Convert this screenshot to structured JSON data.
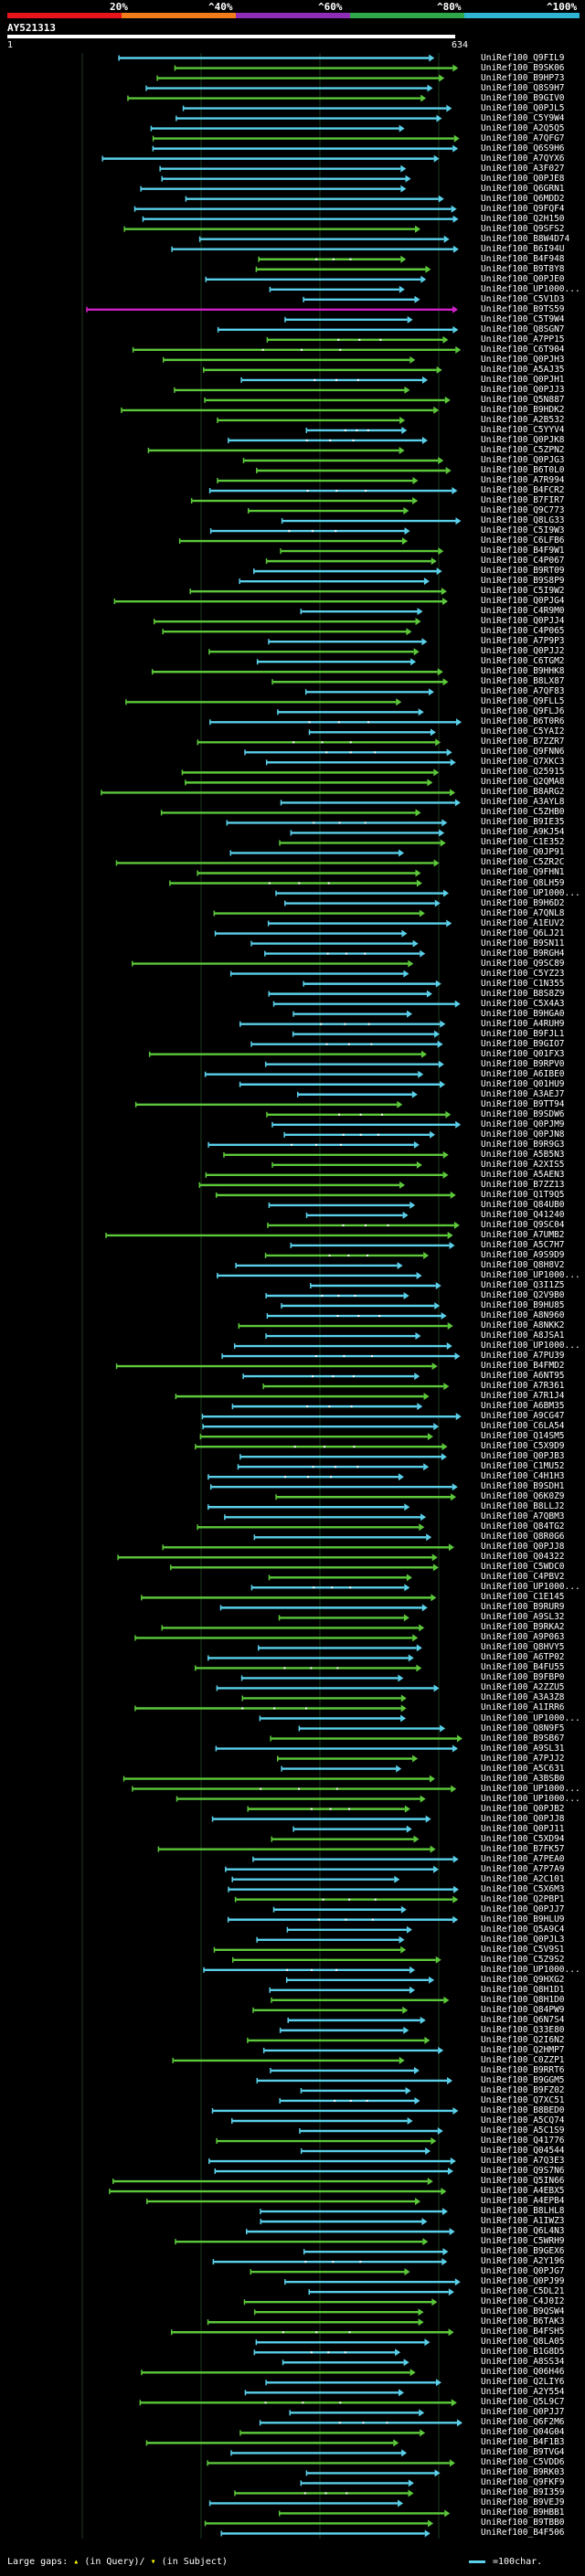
{
  "scale": {
    "labels": [
      "20%",
      "^40%",
      "^60%",
      "^80%",
      "^100%"
    ],
    "colors": [
      "#e8141c",
      "#f07d1a",
      "#8e2db5",
      "#2ea84a",
      "#2fb4d4"
    ]
  },
  "query": {
    "id": "AY521313",
    "start": "1",
    "end": "634"
  },
  "hit_colors": {
    "cyan": "#5ad0ea",
    "green": "#5cc83a",
    "magenta": "#d020c8",
    "gap_dot": "#ffffff"
  },
  "hits": [
    "UniRef100_Q9FIL9",
    "UniRef100_B9SK06",
    "UniRef100_B9HP73",
    "UniRef100_Q8S9H7",
    "UniRef100_B9GIV0",
    "UniRef100_Q0PJL5",
    "UniRef100_C5Y9W4",
    "UniRef100_A2Q5Q5",
    "UniRef100_A7QFG7",
    "UniRef100_Q6S9H6",
    "UniRef100_A7QYX6",
    "UniRef100_A3F027",
    "UniRef100_Q0PJE8",
    "UniRef100_Q6GRN1",
    "UniRef100_Q6MDD2",
    "UniRef100_Q9FQF4",
    "UniRef100_Q2H150",
    "UniRef100_Q9SFS2",
    "UniRef100_B8W4D74",
    "UniRef100_B6I94U",
    "UniRef100_B4F948",
    "UniRef100_B9T8Y8",
    "UniRef100_Q0PJE0",
    "UniRef100_UP1000...",
    "UniRef100_C5V1D3",
    "UniRef100_B9TS59",
    "UniRef100_C5T9W4",
    "UniRef100_Q8SGN7",
    "UniRef100_A7PP15",
    "UniRef100_C6T904",
    "UniRef100_Q0PJH3",
    "UniRef100_A5AJ35",
    "UniRef100_Q0PJH1",
    "UniRef100_Q0PJJ3",
    "UniRef100_Q5N887",
    "UniRef100_B9HDK2",
    "UniRef100_A2B532",
    "UniRef100_C5YYV4",
    "UniRef100_Q0PJK8",
    "UniRef100_C5ZPN2",
    "UniRef100_Q0PJG3",
    "UniRef100_B6T0L0",
    "UniRef100_A7R994",
    "UniRef100_B4FCR2",
    "UniRef100_B7FIR7",
    "UniRef100_Q9C773",
    "UniRef100_Q8LG33",
    "UniRef100_C5I9W3",
    "UniRef100_C6LFB6",
    "UniRef100_B4F9W1",
    "UniRef100_C4P067",
    "UniRef100_B9RT09",
    "UniRef100_B9S8P9",
    "UniRef100_C5I9W2",
    "UniRef100_Q0PJG4",
    "UniRef100_C4R9M0",
    "UniRef100_Q0PJJ4",
    "UniRef100_C4P065",
    "UniRef100_A7P9P3",
    "UniRef100_Q0PJJ2",
    "UniRef100_C6TGM2",
    "UniRef100_B9HHK8",
    "UniRef100_B8LX87",
    "UniRef100_A7QF83",
    "UniRef100_Q9FLL5",
    "UniRef100_Q9FLJ6",
    "UniRef100_B6T0R6",
    "UniRef100_C5YAI2",
    "UniRef100_B7ZZR7",
    "UniRef100_Q9FNN6",
    "UniRef100_Q7XKC3",
    "UniRef100_Q25915",
    "UniRef100_Q2QMA8",
    "UniRef100_B8ARG2",
    "UniRef100_A3AYL8",
    "UniRef100_C5ZHB0",
    "UniRef100_B9IE35",
    "UniRef100_A9KJ54",
    "UniRef100_C1E352",
    "UniRef100_Q0JP91",
    "UniRef100_C5ZR2C",
    "UniRef100_Q9FHN1",
    "UniRef100_Q8LH59",
    "UniRef100_UP1000...",
    "UniRef100_B9H6D2",
    "UniRef100_A7QNL8",
    "UniRef100_A1EUV2",
    "UniRef100_Q6LJ21",
    "UniRef100_B9SN11",
    "UniRef100_B9RGH4",
    "UniRef100_Q9SC89",
    "UniRef100_C5YZ23",
    "UniRef100_C1N355",
    "UniRef100_B8S8Z9",
    "UniRef100_C5X4A3",
    "UniRef100_B9HGA0",
    "UniRef100_A4RUH9",
    "UniRef100_B9FJL1",
    "UniRef100_B9GIO7",
    "UniRef100_Q01FX3",
    "UniRef100_B9RPV0",
    "UniRef100_A6IBE0",
    "UniRef100_Q01HU9",
    "UniRef100_A3AEJ7",
    "UniRef100_B9TT94",
    "UniRef100_B9SDW6",
    "UniRef100_Q0PJM9",
    "UniRef100_Q0PJN8",
    "UniRef100_B9R9G3",
    "UniRef100_A5B5N3",
    "UniRef100_A2XIS5",
    "UniRef100_A5AEN3",
    "UniRef100_B7ZZ13",
    "UniRef100_Q1T9Q5",
    "UniRef100_Q84UB0",
    "UniRef100_Q41240",
    "UniRef100_Q9SC04",
    "UniRef100_A7UMB2",
    "UniRef100_A5C7H7",
    "UniRef100_A9S9D9",
    "UniRef100_Q8H8V2",
    "UniRef100_UP1000...",
    "UniRef100_Q3I1Z5",
    "UniRef100_Q2V9B0",
    "UniRef100_B9HU85",
    "UniRef100_A8N960",
    "UniRef100_A8NKK2",
    "UniRef100_A8JSA1",
    "UniRef100_UP1000...",
    "UniRef100_A7PU39",
    "UniRef100_B4FMD2",
    "UniRef100_A6NT95",
    "UniRef100_A7R361",
    "UniRef100_A7R1J4",
    "UniRef100_A6BM35",
    "UniRef100_A9CG47",
    "UniRef100_C6LA54",
    "UniRef100_Q14SM5",
    "UniRef100_C5X9D9",
    "UniRef100_Q0PJB3",
    "UniRef100_C1MU52",
    "UniRef100_C4H1H3",
    "UniRef100_B9SDH1",
    "UniRef100_Q6K0Z9",
    "UniRef100_B8LLJ2",
    "UniRef100_A7QBM3",
    "UniRef100_Q84TG2",
    "UniRef100_Q8R0G6",
    "UniRef100_Q0PJJ8",
    "UniRef100_Q04322",
    "UniRef100_C5WDC0",
    "UniRef100_C4PBV2",
    "UniRef100_UP1000...",
    "UniRef100_C1E145",
    "UniRef100_B9RUR9",
    "UniRef100_A9SL32",
    "UniRef100_B9RKA2",
    "UniRef100_A9P063",
    "UniRef100_Q8HVY5",
    "UniRef100_A6TP02",
    "UniRef100_B4FU55",
    "UniRef100_B9FBP0",
    "UniRef100_A2ZZU5",
    "UniRef100_A3A3Z8",
    "UniRef100_A1IRR6",
    "UniRef100_UP1000...",
    "UniRef100_Q8N9F5",
    "UniRef100_B9SB67",
    "UniRef100_A9SL31",
    "UniRef100_A7PJJ2",
    "UniRef100_A5C631",
    "UniRef100_A3BSB0",
    "UniRef100_UP1000...",
    "UniRef100_UP1000...",
    "UniRef100_Q0PJB2",
    "UniRef100_Q0PJJ8",
    "UniRef100_Q0PJ11",
    "UniRef100_C5XD94",
    "UniRef100_B7FK57",
    "UniRef100_A7PEA0",
    "UniRef100_A7P7A9",
    "UniRef100_A2C101",
    "UniRef100_C5X6M3",
    "UniRef100_Q2PBP1",
    "UniRef100_Q0PJJ7",
    "UniRef100_B9HLU9",
    "UniRef100_Q5A9C4",
    "UniRef100_Q0PJL3",
    "UniRef100_C5V9S1",
    "UniRef100_C5Z9S2",
    "UniRef100_UP1000...",
    "UniRef100_Q9HXG2",
    "UniRef100_Q8H1D1",
    "UniRef100_Q8H1D0",
    "UniRef100_Q84PW9",
    "UniRef100_Q6N7S4",
    "UniRef100_Q33E80",
    "UniRef100_Q2I6N2",
    "UniRef100_Q2HMP7",
    "UniRef100_C0ZZP1",
    "UniRef100_B9RRT6",
    "UniRef100_B9GGM5",
    "UniRef100_B9FZ02",
    "UniRef100_Q7XC51",
    "UniRef100_B8BED0",
    "UniRef100_A5CQ74",
    "UniRef100_A5C1S9",
    "UniRef100_Q41776",
    "UniRef100_Q04544",
    "UniRef100_A7Q3E3",
    "UniRef100_Q9S7N6",
    "UniRef100_Q5IN66",
    "UniRef100_A4EBX5",
    "UniRef100_A4EPB4",
    "UniRef100_B8LHL8",
    "UniRef100_A1IWZ3",
    "UniRef100_Q6L4N3",
    "UniRef100_C5WRH9",
    "UniRef100_B9GEX6",
    "UniRef100_A2Y196",
    "UniRef100_Q0PJG7",
    "UniRef100_Q0PJ99",
    "UniRef100_C5DL21",
    "UniRef100_C4J0I2",
    "UniRef100_B9QSW4",
    "UniRef100_B6TAK3",
    "UniRef100_B4FSH5",
    "UniRef100_Q8LA05",
    "UniRef100_B1G8D5",
    "UniRef100_A8SS34",
    "UniRef100_Q06H46",
    "UniRef100_Q2LIY6",
    "UniRef100_A2Y554",
    "UniRef100_Q5L9C7",
    "UniRef100_Q0PJJ7",
    "UniRef100_Q6F2M6",
    "UniRef100_Q04G04",
    "UniRef100_B4F1B3",
    "UniRef100_B9TVG4",
    "UniRef100_C5VDD6",
    "UniRef100_B9RK03",
    "UniRef100_Q9FKF9",
    "UniRef100_B9I359",
    "UniRef100_B9VEJ9",
    "UniRef100_B9HBB1",
    "UniRef100_B9TBB0",
    "UniRef100_B4F506"
  ],
  "footer": {
    "large_gaps": "Large gaps:",
    "in_query": "(in Query)/",
    "in_subject": "(in Subject)",
    "scale_note": "=100char."
  }
}
